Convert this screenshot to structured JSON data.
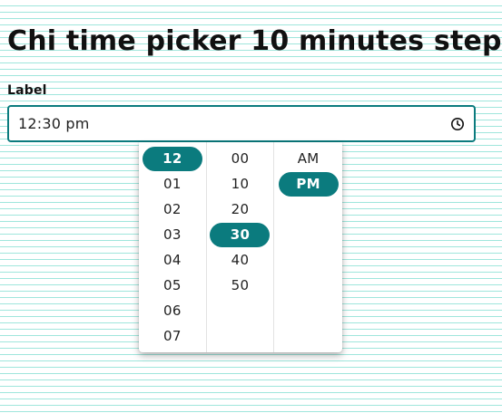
{
  "page": {
    "title": "Chi time picker 10 minutes step"
  },
  "field": {
    "label": "Label",
    "value": "12:30 pm",
    "icon": "clock-icon"
  },
  "picker": {
    "accent": "#0b7b7e",
    "hours": [
      "12",
      "01",
      "02",
      "03",
      "04",
      "05",
      "06",
      "07"
    ],
    "selected_hour": "12",
    "minutes": [
      "00",
      "10",
      "20",
      "30",
      "40",
      "50"
    ],
    "selected_minute": "30",
    "periods": [
      "AM",
      "PM"
    ],
    "selected_period": "PM"
  }
}
